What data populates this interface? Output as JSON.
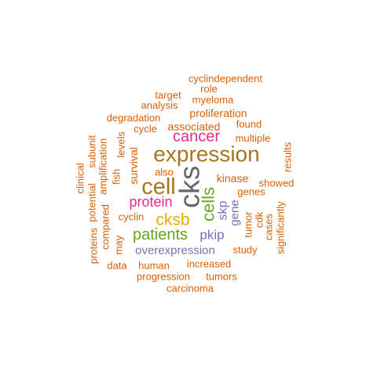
{
  "colors": {
    "orange": "#d95f02",
    "brown": "#a6761d",
    "magenta": "#e7298a",
    "gold": "#e6ab02",
    "green": "#66a61e",
    "purple": "#7570b3",
    "gray": "#666666"
  },
  "words": [
    {
      "text": "cks",
      "color": "gray",
      "rotated": true
    },
    {
      "text": "expression",
      "color": "brown",
      "rotated": false
    },
    {
      "text": "cell",
      "color": "brown",
      "rotated": false
    },
    {
      "text": "cancer",
      "color": "magenta",
      "rotated": false
    },
    {
      "text": "cksb",
      "color": "gold",
      "rotated": false
    },
    {
      "text": "patients",
      "color": "green",
      "rotated": false
    },
    {
      "text": "cells",
      "color": "green",
      "rotated": true
    },
    {
      "text": "protein",
      "color": "magenta",
      "rotated": false
    },
    {
      "text": "pkip",
      "color": "purple",
      "rotated": false
    },
    {
      "text": "skp",
      "color": "purple",
      "rotated": true
    },
    {
      "text": "overexpression",
      "color": "purple",
      "rotated": false
    },
    {
      "text": "gene",
      "color": "purple",
      "rotated": true
    },
    {
      "text": "kinase",
      "color": "orange",
      "rotated": false
    },
    {
      "text": "genes",
      "color": "orange",
      "rotated": false
    },
    {
      "text": "showed",
      "color": "orange",
      "rotated": false
    },
    {
      "text": "multiple",
      "color": "orange",
      "rotated": false
    },
    {
      "text": "found",
      "color": "orange",
      "rotated": false
    },
    {
      "text": "associated",
      "color": "orange",
      "rotated": false
    },
    {
      "text": "proliferation",
      "color": "orange",
      "rotated": false
    },
    {
      "text": "cycle",
      "color": "orange",
      "rotated": false
    },
    {
      "text": "degradation",
      "color": "orange",
      "rotated": false
    },
    {
      "text": "analysis",
      "color": "orange",
      "rotated": false
    },
    {
      "text": "myeloma",
      "color": "orange",
      "rotated": false
    },
    {
      "text": "target",
      "color": "orange",
      "rotated": false
    },
    {
      "text": "role",
      "color": "orange",
      "rotated": false
    },
    {
      "text": "cyclindependent",
      "color": "orange",
      "rotated": false
    },
    {
      "text": "survival",
      "color": "orange",
      "rotated": true
    },
    {
      "text": "also",
      "color": "orange",
      "rotated": false
    },
    {
      "text": "levels",
      "color": "orange",
      "rotated": true
    },
    {
      "text": "fish",
      "color": "orange",
      "rotated": true
    },
    {
      "text": "amplification",
      "color": "orange",
      "rotated": true
    },
    {
      "text": "subunit",
      "color": "orange",
      "rotated": true
    },
    {
      "text": "potential",
      "color": "orange",
      "rotated": true
    },
    {
      "text": "clinical",
      "color": "orange",
      "rotated": true
    },
    {
      "text": "proteins",
      "color": "orange",
      "rotated": true
    },
    {
      "text": "compared",
      "color": "orange",
      "rotated": true
    },
    {
      "text": "may",
      "color": "orange",
      "rotated": true
    },
    {
      "text": "cyclin",
      "color": "orange",
      "rotated": false
    },
    {
      "text": "data",
      "color": "orange",
      "rotated": false
    },
    {
      "text": "human",
      "color": "orange",
      "rotated": false
    },
    {
      "text": "increased",
      "color": "orange",
      "rotated": false
    },
    {
      "text": "progression",
      "color": "orange",
      "rotated": false
    },
    {
      "text": "tumors",
      "color": "orange",
      "rotated": false
    },
    {
      "text": "carcinoma",
      "color": "orange",
      "rotated": false
    },
    {
      "text": "study",
      "color": "orange",
      "rotated": false
    },
    {
      "text": "tumor",
      "color": "orange",
      "rotated": true
    },
    {
      "text": "cdk",
      "color": "orange",
      "rotated": true
    },
    {
      "text": "cases",
      "color": "orange",
      "rotated": true
    },
    {
      "text": "significantly",
      "color": "orange",
      "rotated": true
    },
    {
      "text": "results",
      "color": "orange",
      "rotated": true
    }
  ]
}
